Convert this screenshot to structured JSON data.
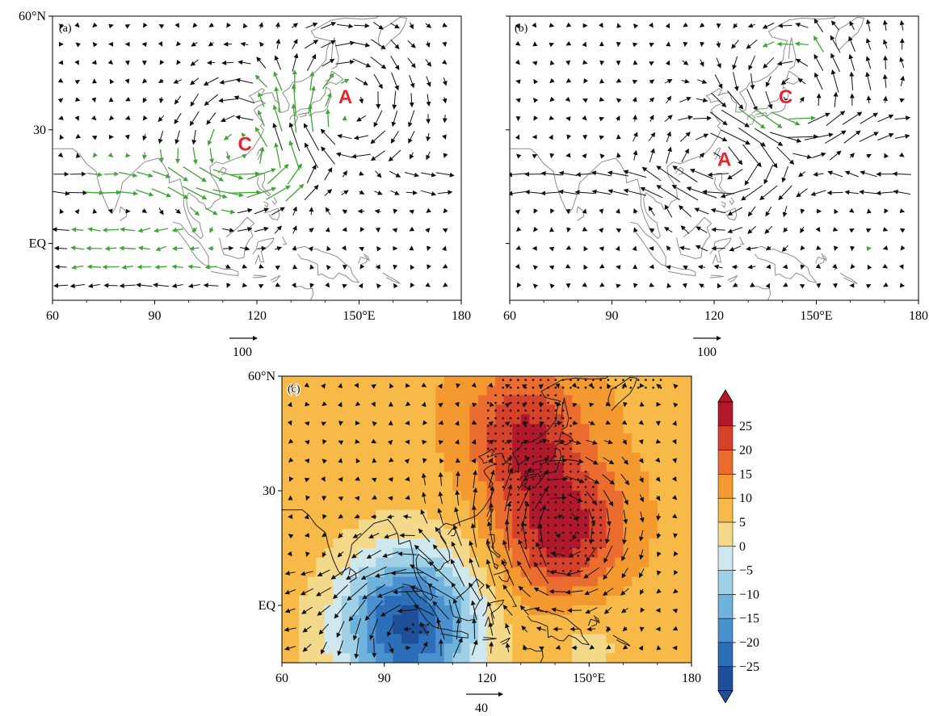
{
  "panels": [
    {
      "id": "a",
      "label": "(a)",
      "x_ticks": [
        "60",
        "90",
        "120",
        "150°E",
        "180"
      ],
      "y_ticks": [
        "60°N",
        "30",
        "EQ"
      ],
      "reference_vector": "100",
      "markers": [
        {
          "text": "A",
          "lon": 146,
          "lat": 37
        },
        {
          "text": "C",
          "lon": 116.5,
          "lat": 24.5
        }
      ],
      "vector_colors": {
        "significant": "#3fa535",
        "other": "#111111"
      }
    },
    {
      "id": "b",
      "label": "(b)",
      "x_ticks": [
        "60",
        "90",
        "120",
        "150°E",
        "180"
      ],
      "y_ticks": [],
      "reference_vector": "100",
      "markers": [
        {
          "text": "C",
          "lon": 141,
          "lat": 37
        },
        {
          "text": "A",
          "lon": 123,
          "lat": 20.5
        }
      ],
      "vector_colors": {
        "significant": "#3fa535",
        "other": "#111111"
      }
    },
    {
      "id": "c",
      "label": "(c)",
      "x_ticks": [
        "60",
        "90",
        "120",
        "150°E",
        "180"
      ],
      "y_ticks": [
        "60°N",
        "30",
        "EQ"
      ],
      "reference_vector": "40",
      "colorbar": {
        "labels": [
          "25",
          "20",
          "15",
          "10",
          "5",
          "0",
          "−5",
          "−10",
          "−15",
          "−20",
          "−25"
        ],
        "colors": [
          "#b2182b",
          "#d6412a",
          "#ea6c2f",
          "#f3992f",
          "#f7b947",
          "#f5d98a",
          "#cfe8f0",
          "#9fd0e6",
          "#6fb2dc",
          "#4a90cf",
          "#2c6fb8",
          "#1f4f99"
        ]
      }
    }
  ],
  "chart_data": [
    {
      "type": "vector_map",
      "panel": "(a)",
      "x_range": [
        60,
        180
      ],
      "y_range": [
        -15,
        60
      ],
      "anomaly_centers": [
        {
          "label": "A",
          "lon": 146,
          "lat": 37
        },
        {
          "label": "C",
          "lon": 116.5,
          "lat": 24.5
        }
      ],
      "reference_vector_length": 100
    },
    {
      "type": "vector_map",
      "panel": "(b)",
      "x_range": [
        60,
        180
      ],
      "y_range": [
        -15,
        60
      ],
      "anomaly_centers": [
        {
          "label": "C",
          "lon": 141,
          "lat": 37
        },
        {
          "label": "A",
          "lon": 123,
          "lat": 20.5
        }
      ],
      "reference_vector_length": 100
    },
    {
      "type": "heatmap",
      "panel": "(c)",
      "x_range": [
        60,
        180
      ],
      "y_range": [
        -15,
        60
      ],
      "color_levels": [
        -25,
        -20,
        -15,
        -10,
        -5,
        0,
        5,
        10,
        15,
        20,
        25
      ],
      "centers": [
        {
          "lon": 142,
          "lat": 20,
          "value": 25
        },
        {
          "lon": 131,
          "lat": 45,
          "value": 21
        },
        {
          "lon": 97,
          "lat": -5,
          "value": -22
        },
        {
          "lon": 60,
          "lat": 60,
          "value": 12
        },
        {
          "lon": 180,
          "lat": -15,
          "value": 8
        }
      ],
      "reference_vector_length": 40
    }
  ]
}
